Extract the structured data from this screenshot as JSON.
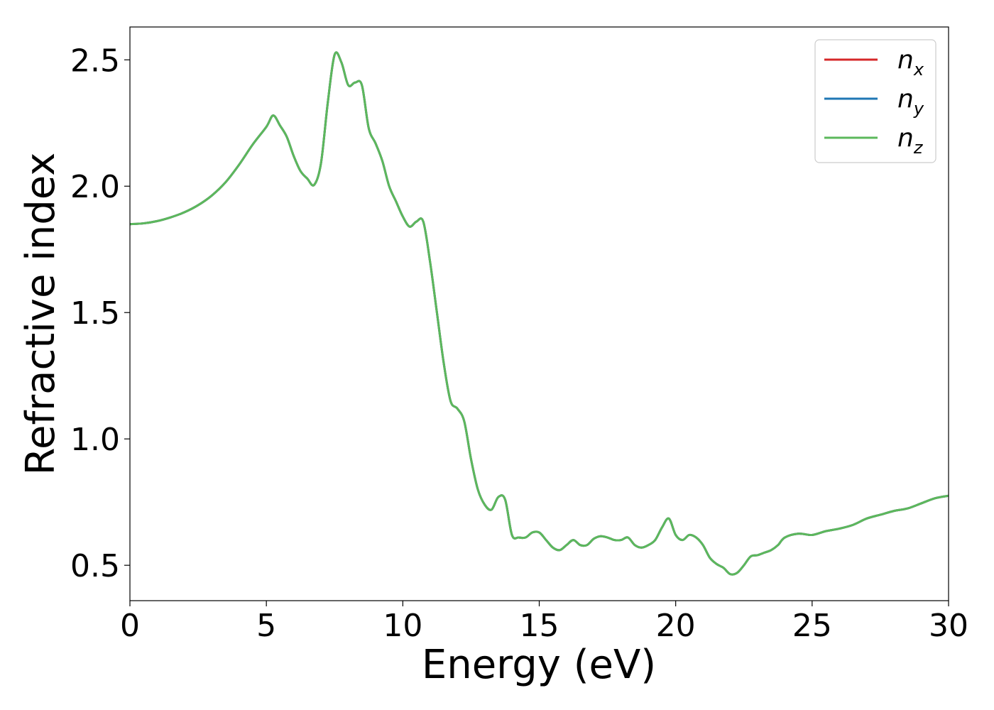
{
  "chart_data": {
    "type": "line",
    "xlabel": "Energy (eV)",
    "ylabel": "Refractive index",
    "xlim": [
      0,
      30
    ],
    "ylim": [
      0.36,
      2.63
    ],
    "xticks": [
      0,
      5,
      10,
      15,
      20,
      25,
      30
    ],
    "xtick_labels": [
      "0",
      "5",
      "10",
      "15",
      "20",
      "25",
      "30"
    ],
    "yticks": [
      0.5,
      1.0,
      1.5,
      2.0,
      2.5
    ],
    "ytick_labels": [
      "0.5",
      "1.0",
      "1.5",
      "2.0",
      "2.5"
    ],
    "grid": false,
    "legend_position": "top-right",
    "x": [
      0,
      0.5,
      1,
      1.5,
      2,
      2.5,
      3,
      3.5,
      4,
      4.5,
      5,
      5.25,
      5.5,
      5.75,
      6,
      6.25,
      6.5,
      6.75,
      7,
      7.25,
      7.5,
      7.75,
      8,
      8.25,
      8.5,
      8.75,
      9,
      9.25,
      9.5,
      9.75,
      10,
      10.25,
      10.5,
      10.75,
      11,
      11.25,
      11.5,
      11.75,
      12,
      12.25,
      12.5,
      12.75,
      13,
      13.25,
      13.5,
      13.75,
      14,
      14.25,
      14.5,
      14.75,
      15,
      15.25,
      15.5,
      15.75,
      16,
      16.25,
      16.5,
      16.75,
      17,
      17.25,
      17.5,
      17.75,
      18,
      18.25,
      18.5,
      18.75,
      19,
      19.25,
      19.5,
      19.75,
      20,
      20.25,
      20.5,
      20.75,
      21,
      21.25,
      21.5,
      21.75,
      22,
      22.25,
      22.5,
      22.75,
      23,
      23.25,
      23.5,
      23.75,
      24,
      24.5,
      25,
      25.5,
      26,
      26.5,
      27,
      27.5,
      28,
      28.5,
      29,
      29.5,
      30
    ],
    "series": [
      {
        "name": "n_x",
        "label": "n",
        "subscript": "x",
        "color": "#d62728",
        "values": [
          1.85,
          1.853,
          1.862,
          1.877,
          1.897,
          1.925,
          1.963,
          2.015,
          2.085,
          2.165,
          2.235,
          2.28,
          2.24,
          2.195,
          2.12,
          2.06,
          2.03,
          2.005,
          2.09,
          2.33,
          2.52,
          2.49,
          2.4,
          2.41,
          2.4,
          2.23,
          2.17,
          2.1,
          2.0,
          1.94,
          1.88,
          1.84,
          1.86,
          1.86,
          1.7,
          1.5,
          1.3,
          1.15,
          1.12,
          1.07,
          0.92,
          0.8,
          0.74,
          0.72,
          0.77,
          0.76,
          0.62,
          0.61,
          0.61,
          0.63,
          0.63,
          0.6,
          0.57,
          0.56,
          0.58,
          0.6,
          0.58,
          0.58,
          0.605,
          0.615,
          0.61,
          0.6,
          0.6,
          0.61,
          0.58,
          0.57,
          0.58,
          0.6,
          0.65,
          0.685,
          0.62,
          0.6,
          0.62,
          0.61,
          0.58,
          0.53,
          0.505,
          0.49,
          0.465,
          0.47,
          0.5,
          0.535,
          0.54,
          0.55,
          0.56,
          0.58,
          0.61,
          0.625,
          0.62,
          0.635,
          0.645,
          0.66,
          0.685,
          0.7,
          0.715,
          0.725,
          0.745,
          0.765,
          0.775
        ]
      },
      {
        "name": "n_y",
        "label": "n",
        "subscript": "y",
        "color": "#1f77b4",
        "values": [
          1.85,
          1.853,
          1.862,
          1.877,
          1.897,
          1.925,
          1.963,
          2.015,
          2.085,
          2.165,
          2.235,
          2.28,
          2.24,
          2.195,
          2.12,
          2.06,
          2.03,
          2.005,
          2.09,
          2.33,
          2.52,
          2.49,
          2.4,
          2.41,
          2.4,
          2.23,
          2.17,
          2.1,
          2.0,
          1.94,
          1.88,
          1.84,
          1.86,
          1.86,
          1.7,
          1.5,
          1.3,
          1.15,
          1.12,
          1.07,
          0.92,
          0.8,
          0.74,
          0.72,
          0.77,
          0.76,
          0.62,
          0.61,
          0.61,
          0.63,
          0.63,
          0.6,
          0.57,
          0.56,
          0.58,
          0.6,
          0.58,
          0.58,
          0.605,
          0.615,
          0.61,
          0.6,
          0.6,
          0.61,
          0.58,
          0.57,
          0.58,
          0.6,
          0.65,
          0.685,
          0.62,
          0.6,
          0.62,
          0.61,
          0.58,
          0.53,
          0.505,
          0.49,
          0.465,
          0.47,
          0.5,
          0.535,
          0.54,
          0.55,
          0.56,
          0.58,
          0.61,
          0.625,
          0.62,
          0.635,
          0.645,
          0.66,
          0.685,
          0.7,
          0.715,
          0.725,
          0.745,
          0.765,
          0.775
        ]
      },
      {
        "name": "n_z",
        "label": "n",
        "subscript": "z",
        "color": "#5cb85c",
        "values": [
          1.85,
          1.853,
          1.862,
          1.877,
          1.897,
          1.925,
          1.963,
          2.015,
          2.085,
          2.165,
          2.235,
          2.28,
          2.24,
          2.195,
          2.12,
          2.06,
          2.03,
          2.005,
          2.09,
          2.33,
          2.52,
          2.49,
          2.4,
          2.41,
          2.4,
          2.23,
          2.17,
          2.1,
          2.0,
          1.94,
          1.88,
          1.84,
          1.86,
          1.86,
          1.7,
          1.5,
          1.3,
          1.15,
          1.12,
          1.07,
          0.92,
          0.8,
          0.74,
          0.72,
          0.77,
          0.76,
          0.62,
          0.61,
          0.61,
          0.63,
          0.63,
          0.6,
          0.57,
          0.56,
          0.58,
          0.6,
          0.58,
          0.58,
          0.605,
          0.615,
          0.61,
          0.6,
          0.6,
          0.61,
          0.58,
          0.57,
          0.58,
          0.6,
          0.65,
          0.685,
          0.62,
          0.6,
          0.62,
          0.61,
          0.58,
          0.53,
          0.505,
          0.49,
          0.465,
          0.47,
          0.5,
          0.535,
          0.54,
          0.55,
          0.56,
          0.58,
          0.61,
          0.625,
          0.62,
          0.635,
          0.645,
          0.66,
          0.685,
          0.7,
          0.715,
          0.725,
          0.745,
          0.765,
          0.775
        ]
      }
    ]
  }
}
